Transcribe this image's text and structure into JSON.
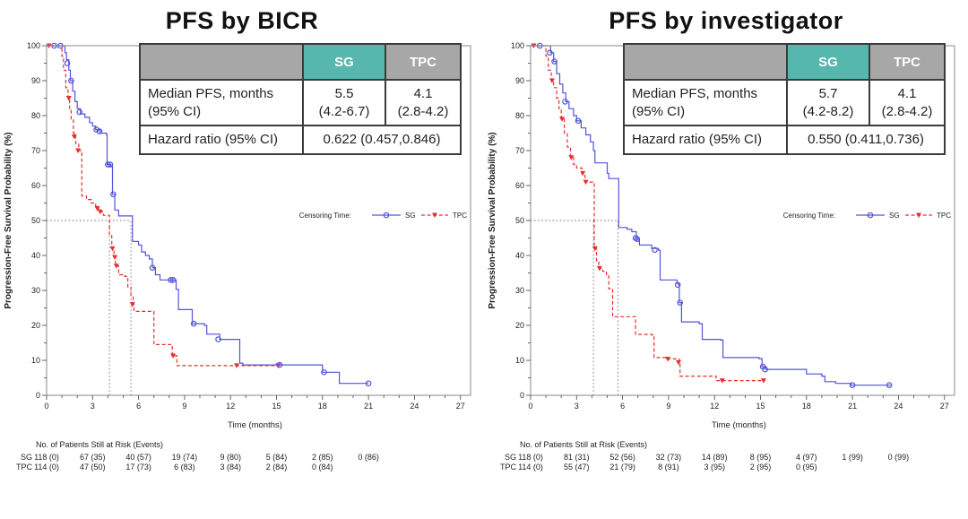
{
  "colors": {
    "sg_line": "#5353db",
    "tpc_line": "#e62e2e",
    "teal_header": "#56b7ae",
    "gray_header": "#a7a7a7",
    "table_border": "#3b3b3b",
    "axis": "#555555",
    "ref_line": "#6b6b6b",
    "text": "#222222"
  },
  "chart_data": [
    {
      "type": "line",
      "subtype": "kaplan-meier",
      "title": "PFS by BICR",
      "xlabel": "Time (months)",
      "ylabel": "Progression-Free Survival Probability (%)",
      "xlim": [
        0,
        27
      ],
      "ylim": [
        0,
        100
      ],
      "xtick_step": 3,
      "xminor_step": 1,
      "ytick_step": 10,
      "yminor_step": 5,
      "grid": false,
      "legend": {
        "label": "Censoring Time:",
        "items": [
          "SG",
          "TPC"
        ],
        "position": "right-middle"
      },
      "median_markers": {
        "y_pct": 50,
        "x_months": [
          4.1,
          5.5
        ]
      },
      "stats_table": {
        "header": [
          "SG",
          "TPC"
        ],
        "row1": {
          "label_l1": "Median PFS, months",
          "label_l2": "(95% CI)",
          "sg_l1": "5.5",
          "sg_l2": "(4.2-6.7)",
          "tpc_l1": "4.1",
          "tpc_l2": "(2.8-4.2)"
        },
        "row2": {
          "label": "Hazard ratio (95% CI)",
          "value": "0.622 (0.457,0.846)"
        }
      },
      "series": [
        {
          "name": "TPC",
          "color": "#e62e2e",
          "line": "dashed",
          "marker": "triangle-down",
          "steps": [
            [
              0,
              100
            ],
            [
              0.9,
              100
            ],
            [
              1.0,
              97
            ],
            [
              1.1,
              93
            ],
            [
              1.25,
              88
            ],
            [
              1.4,
              85
            ],
            [
              1.5,
              82
            ],
            [
              1.6,
              79
            ],
            [
              1.75,
              75
            ],
            [
              1.9,
              72
            ],
            [
              2.1,
              70
            ],
            [
              2.3,
              57
            ],
            [
              2.6,
              56
            ],
            [
              2.9,
              55
            ],
            [
              3.2,
              54
            ],
            [
              3.4,
              52.5
            ],
            [
              3.7,
              51.5
            ],
            [
              4.1,
              46
            ],
            [
              4.25,
              42
            ],
            [
              4.4,
              39.5
            ],
            [
              4.5,
              37
            ],
            [
              4.7,
              34.5
            ],
            [
              5.1,
              34
            ],
            [
              5.3,
              31
            ],
            [
              5.5,
              28.5
            ],
            [
              5.65,
              26
            ],
            [
              5.7,
              24
            ],
            [
              6.9,
              24
            ],
            [
              7.0,
              14.5
            ],
            [
              7.9,
              14.5
            ],
            [
              8.2,
              11.3
            ],
            [
              8.5,
              8.5
            ],
            [
              15.2,
              8.5
            ]
          ],
          "censors": [
            [
              0.15,
              100
            ],
            [
              1.45,
              85
            ],
            [
              1.8,
              74
            ],
            [
              2.05,
              70
            ],
            [
              3.3,
              53.5
            ],
            [
              3.5,
              52.5
            ],
            [
              4.3,
              42
            ],
            [
              4.45,
              39.5
            ],
            [
              4.55,
              37
            ],
            [
              5.6,
              26
            ],
            [
              8.25,
              11.3
            ],
            [
              12.4,
              8.5
            ],
            [
              15.1,
              8.5
            ]
          ]
        },
        {
          "name": "SG",
          "color": "#5353db",
          "line": "solid",
          "marker": "circle",
          "steps": [
            [
              0,
              100
            ],
            [
              1.1,
              100
            ],
            [
              1.2,
              98
            ],
            [
              1.3,
              96
            ],
            [
              1.45,
              93
            ],
            [
              1.55,
              90
            ],
            [
              1.7,
              87
            ],
            [
              1.85,
              84
            ],
            [
              2.0,
              82
            ],
            [
              2.2,
              80.5
            ],
            [
              2.5,
              79.5
            ],
            [
              2.8,
              78
            ],
            [
              3.0,
              77
            ],
            [
              3.2,
              76
            ],
            [
              3.5,
              75
            ],
            [
              3.9,
              74.5
            ],
            [
              3.95,
              66
            ],
            [
              4.2,
              65.5
            ],
            [
              4.3,
              57.5
            ],
            [
              4.45,
              53
            ],
            [
              4.7,
              51.3
            ],
            [
              5.5,
              51.3
            ],
            [
              5.6,
              44
            ],
            [
              6.0,
              43
            ],
            [
              6.2,
              41
            ],
            [
              6.45,
              40
            ],
            [
              6.7,
              39
            ],
            [
              6.9,
              36.5
            ],
            [
              7.1,
              34.5
            ],
            [
              7.4,
              33
            ],
            [
              8.3,
              33
            ],
            [
              8.45,
              30.3
            ],
            [
              8.6,
              24.5
            ],
            [
              9.4,
              24.5
            ],
            [
              9.5,
              20.5
            ],
            [
              10.3,
              20
            ],
            [
              10.45,
              17.5
            ],
            [
              11.3,
              16
            ],
            [
              12.5,
              16
            ],
            [
              12.6,
              9.2
            ],
            [
              12.8,
              8.7
            ],
            [
              17.9,
              8.7
            ],
            [
              18.0,
              6.6
            ],
            [
              19.0,
              6.6
            ],
            [
              19.1,
              3.4
            ],
            [
              21.0,
              3.4
            ]
          ],
          "censors": [
            [
              0.5,
              100
            ],
            [
              0.9,
              100
            ],
            [
              1.35,
              95
            ],
            [
              1.6,
              90
            ],
            [
              2.15,
              81
            ],
            [
              3.25,
              76
            ],
            [
              3.45,
              75.5
            ],
            [
              4.0,
              66
            ],
            [
              4.15,
              66
            ],
            [
              4.35,
              57.5
            ],
            [
              6.9,
              36.5
            ],
            [
              8.1,
              33
            ],
            [
              8.25,
              33
            ],
            [
              9.6,
              20.5
            ],
            [
              11.2,
              16
            ],
            [
              15.2,
              8.7
            ],
            [
              18.1,
              6.6
            ],
            [
              21,
              3.4
            ]
          ]
        }
      ],
      "risk_table": {
        "title": "No. of Patients Still at Risk (Events)",
        "times": [
          0,
          3,
          6,
          9,
          12,
          15,
          18,
          21,
          24
        ],
        "rows": [
          {
            "name": "SG",
            "values": [
              "118 (0)",
              "67 (35)",
              "40 (57)",
              "19 (74)",
              "9 (80)",
              "5 (84)",
              "2 (85)",
              "0 (86)"
            ]
          },
          {
            "name": "TPC",
            "values": [
              "114 (0)",
              "47 (50)",
              "17 (73)",
              "6 (83)",
              "3 (84)",
              "2 (84)",
              "0 (84)"
            ]
          }
        ]
      }
    },
    {
      "type": "line",
      "subtype": "kaplan-meier",
      "title": "PFS by investigator",
      "xlabel": "Time (months)",
      "ylabel": "Progression-Free Survival Probability (%)",
      "xlim": [
        0,
        27
      ],
      "ylim": [
        0,
        100
      ],
      "xtick_step": 3,
      "xminor_step": 1,
      "ytick_step": 10,
      "yminor_step": 5,
      "grid": false,
      "legend": {
        "label": "Censoring Time:",
        "items": [
          "SG",
          "TPC"
        ],
        "position": "right-middle"
      },
      "median_markers": {
        "y_pct": 50,
        "x_months": [
          4.1,
          5.7
        ]
      },
      "stats_table": {
        "header": [
          "SG",
          "TPC"
        ],
        "row1": {
          "label_l1": "Median PFS, months",
          "label_l2": "(95% CI)",
          "sg_l1": "5.7",
          "sg_l2": "(4.2-8.2)",
          "tpc_l1": "4.1",
          "tpc_l2": "(2.8-4.2)"
        },
        "row2": {
          "label": "Hazard ratio (95% CI)",
          "value": "0.550 (0.411,0.736)"
        }
      },
      "series": [
        {
          "name": "TPC",
          "color": "#e62e2e",
          "line": "dashed",
          "marker": "triangle-down",
          "steps": [
            [
              0,
              100
            ],
            [
              0.9,
              100
            ],
            [
              1.0,
              97
            ],
            [
              1.15,
              93
            ],
            [
              1.35,
              90
            ],
            [
              1.5,
              88
            ],
            [
              1.7,
              85
            ],
            [
              1.85,
              82
            ],
            [
              2.0,
              79
            ],
            [
              2.2,
              75
            ],
            [
              2.4,
              71
            ],
            [
              2.6,
              68
            ],
            [
              2.8,
              66
            ],
            [
              3.0,
              65
            ],
            [
              3.35,
              63.5
            ],
            [
              3.55,
              61
            ],
            [
              4.1,
              61
            ],
            [
              4.15,
              42
            ],
            [
              4.3,
              38.5
            ],
            [
              4.45,
              36.3
            ],
            [
              4.7,
              35.5
            ],
            [
              4.95,
              34.2
            ],
            [
              5.1,
              30.5
            ],
            [
              5.35,
              22.5
            ],
            [
              6.7,
              22.5
            ],
            [
              6.85,
              17.4
            ],
            [
              7.95,
              17.1
            ],
            [
              8.05,
              10.8
            ],
            [
              8.8,
              10.4
            ],
            [
              9.7,
              9.4
            ],
            [
              9.75,
              5.5
            ],
            [
              12.0,
              5.5
            ],
            [
              12.1,
              4.2
            ],
            [
              15.3,
              4.2
            ]
          ],
          "censors": [
            [
              0.2,
              100
            ],
            [
              1.4,
              90
            ],
            [
              2.05,
              79
            ],
            [
              2.65,
              68
            ],
            [
              3.4,
              63.5
            ],
            [
              3.6,
              61
            ],
            [
              4.2,
              42
            ],
            [
              4.5,
              36.3
            ],
            [
              8.95,
              10.4
            ],
            [
              9.65,
              9.4
            ],
            [
              12.5,
              4.2
            ],
            [
              15.2,
              4.2
            ]
          ]
        },
        {
          "name": "SG",
          "color": "#5353db",
          "line": "solid",
          "marker": "circle",
          "steps": [
            [
              0,
              100
            ],
            [
              1.2,
              100
            ],
            [
              1.3,
              98
            ],
            [
              1.5,
              95.5
            ],
            [
              1.7,
              92
            ],
            [
              1.9,
              89
            ],
            [
              2.1,
              86.5
            ],
            [
              2.3,
              84
            ],
            [
              2.5,
              82
            ],
            [
              2.8,
              80
            ],
            [
              3.0,
              78.5
            ],
            [
              3.3,
              76.5
            ],
            [
              3.6,
              74.5
            ],
            [
              3.9,
              72.5
            ],
            [
              4.1,
              70
            ],
            [
              4.2,
              66.5
            ],
            [
              4.9,
              66.5
            ],
            [
              5.0,
              63.5
            ],
            [
              5.1,
              62
            ],
            [
              5.7,
              62
            ],
            [
              5.75,
              48
            ],
            [
              6.3,
              47.5
            ],
            [
              6.6,
              46.8
            ],
            [
              6.9,
              44.7
            ],
            [
              7.1,
              43
            ],
            [
              7.9,
              42
            ],
            [
              8.35,
              41.5
            ],
            [
              8.45,
              33
            ],
            [
              9.55,
              32
            ],
            [
              9.65,
              31.6
            ],
            [
              9.7,
              26.5
            ],
            [
              9.85,
              21
            ],
            [
              11.0,
              20.5
            ],
            [
              11.2,
              16
            ],
            [
              12.4,
              15.8
            ],
            [
              12.55,
              10.8
            ],
            [
              14.9,
              10.5
            ],
            [
              15.1,
              8.2
            ],
            [
              15.35,
              7.4
            ],
            [
              17.9,
              7.4
            ],
            [
              18.0,
              6.1
            ],
            [
              19.0,
              5.5
            ],
            [
              19.2,
              3.9
            ],
            [
              19.9,
              3.4
            ],
            [
              20.9,
              2.9
            ],
            [
              23.5,
              2.9
            ]
          ],
          "censors": [
            [
              0.6,
              100
            ],
            [
              1.25,
              98
            ],
            [
              1.55,
              95.5
            ],
            [
              2.25,
              84
            ],
            [
              3.1,
              78.5
            ],
            [
              6.85,
              45
            ],
            [
              6.95,
              44.7
            ],
            [
              8.1,
              41.6
            ],
            [
              9.6,
              31.6
            ],
            [
              9.75,
              26.5
            ],
            [
              15.15,
              8.2
            ],
            [
              15.3,
              7.4
            ],
            [
              21,
              2.9
            ],
            [
              23.4,
              2.9
            ]
          ]
        }
      ],
      "risk_table": {
        "title": "No. of Patients Still at Risk (Events)",
        "times": [
          0,
          3,
          6,
          9,
          12,
          15,
          18,
          21,
          24
        ],
        "rows": [
          {
            "name": "SG",
            "values": [
              "118 (0)",
              "81 (31)",
              "52 (56)",
              "32 (73)",
              "14 (89)",
              "8 (95)",
              "4 (97)",
              "1 (99)",
              "0 (99)"
            ]
          },
          {
            "name": "TPC",
            "values": [
              "114 (0)",
              "55 (47)",
              "21 (79)",
              "8 (91)",
              "3 (95)",
              "2 (95)",
              "0 (95)"
            ]
          }
        ]
      }
    }
  ]
}
